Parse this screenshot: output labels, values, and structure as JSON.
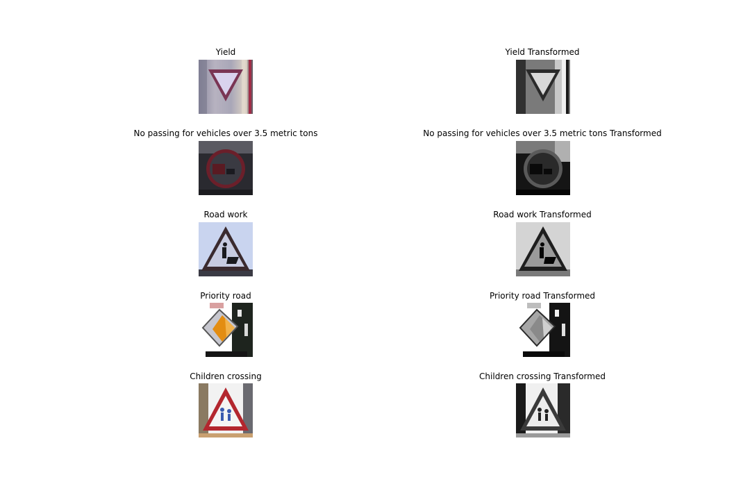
{
  "rows": [
    {
      "original": {
        "title": "Yield",
        "sign": "yield"
      },
      "transformed": {
        "title": "Yield Transformed",
        "sign": "yield"
      }
    },
    {
      "original": {
        "title": "No passing for vehicles over 3.5 metric tons",
        "sign": "no-passing-trucks"
      },
      "transformed": {
        "title": "No passing for vehicles over 3.5 metric tons Transformed",
        "sign": "no-passing-trucks"
      }
    },
    {
      "original": {
        "title": "Road work",
        "sign": "road-work"
      },
      "transformed": {
        "title": "Road work Transformed",
        "sign": "road-work"
      }
    },
    {
      "original": {
        "title": "Priority road",
        "sign": "priority-road"
      },
      "transformed": {
        "title": "Priority road Transformed",
        "sign": "priority-road"
      }
    },
    {
      "original": {
        "title": "Children crossing",
        "sign": "children-crossing"
      },
      "transformed": {
        "title": "Children crossing Transformed",
        "sign": "children-crossing"
      }
    }
  ]
}
